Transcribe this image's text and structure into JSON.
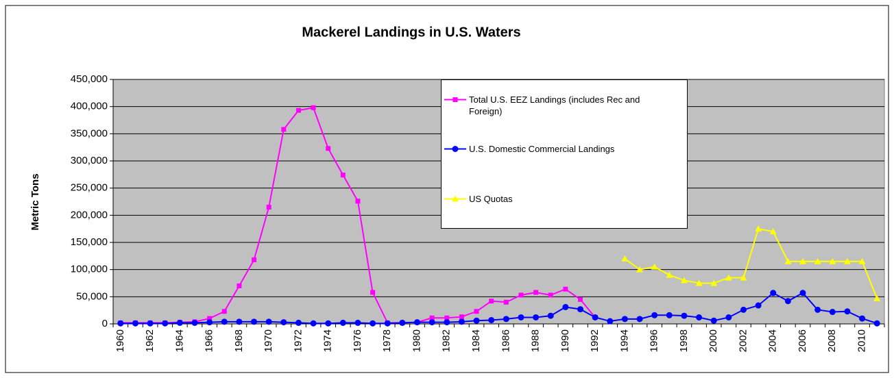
{
  "chart_data": {
    "type": "line",
    "title": "Mackerel Landings in U.S. Waters",
    "y_label": "Metric Tons",
    "categories": [
      "1960",
      null,
      "1962",
      null,
      "1964",
      null,
      "1966",
      null,
      "1968",
      null,
      "1970",
      null,
      "1972",
      null,
      "1974",
      null,
      "1976",
      null,
      "1978",
      null,
      "1980",
      null,
      "1982",
      null,
      "1984",
      null,
      "1986",
      null,
      "1988",
      null,
      "1990",
      null,
      "1992",
      null,
      "1994",
      null,
      "1996",
      null,
      "1998",
      null,
      "2000",
      null,
      "2002",
      null,
      "2004",
      null,
      "2006",
      null,
      "2008",
      null,
      "2010",
      null
    ],
    "series": [
      {
        "name": "Total U.S. EEZ Landings (includes Rec and Foreign)",
        "color": "#ff00ff",
        "marker": "square",
        "values": [
          2000,
          2000,
          2000,
          2000,
          3000,
          4000,
          10000,
          23000,
          70000,
          118000,
          215000,
          358000,
          393000,
          398000,
          323000,
          274000,
          226000,
          58000,
          2000,
          2000,
          3000,
          11000,
          11000,
          13000,
          23000,
          42000,
          40000,
          53000,
          58000,
          53000,
          64000,
          45000,
          12000,
          null,
          null,
          null,
          null,
          null,
          null,
          null,
          null,
          null,
          null,
          null,
          null,
          null,
          null,
          null,
          null,
          null,
          null,
          null
        ]
      },
      {
        "name": "U.S. Domestic Commercial Landings",
        "color": "#0000ff",
        "marker": "circle",
        "values": [
          1000,
          1000,
          1000,
          1000,
          2000,
          2000,
          3000,
          4000,
          4000,
          4000,
          4000,
          3000,
          2000,
          1000,
          1000,
          2000,
          2000,
          1000,
          1000,
          2000,
          3000,
          3000,
          3000,
          4000,
          6000,
          7000,
          9000,
          12000,
          12000,
          15000,
          31000,
          27000,
          12000,
          5000,
          9000,
          9000,
          16000,
          16000,
          15000,
          12000,
          6000,
          12000,
          26000,
          34000,
          57000,
          42000,
          57000,
          26000,
          22000,
          23000,
          10000,
          1000
        ]
      },
      {
        "name": "US Quotas",
        "color": "#ffff00",
        "marker": "triangle",
        "values": [
          null,
          null,
          null,
          null,
          null,
          null,
          null,
          null,
          null,
          null,
          null,
          null,
          null,
          null,
          null,
          null,
          null,
          null,
          null,
          null,
          null,
          null,
          null,
          null,
          null,
          null,
          null,
          null,
          null,
          null,
          null,
          null,
          null,
          null,
          120000,
          100000,
          105000,
          90000,
          80000,
          75000,
          75000,
          85000,
          85000,
          175000,
          170000,
          115000,
          115000,
          115000,
          115000,
          115000,
          115000,
          47000
        ]
      }
    ],
    "ylim": [
      0,
      450000
    ],
    "yticks": [
      0,
      {
        "value": 50000,
        "label": "50,000"
      },
      {
        "value": 100000,
        "label": "100,000"
      },
      {
        "value": 150000,
        "label": "150,000"
      },
      {
        "value": 200000,
        "label": "200,000"
      },
      {
        "value": 250000,
        "label": "250,000"
      },
      {
        "value": 300000,
        "label": "300,000"
      },
      {
        "value": 350000,
        "label": "350,000"
      },
      {
        "value": 400000,
        "label": "400,000"
      },
      {
        "value": 450000,
        "label": "450,000"
      }
    ],
    "grid": true,
    "plot_background": "#c0c0c0"
  }
}
